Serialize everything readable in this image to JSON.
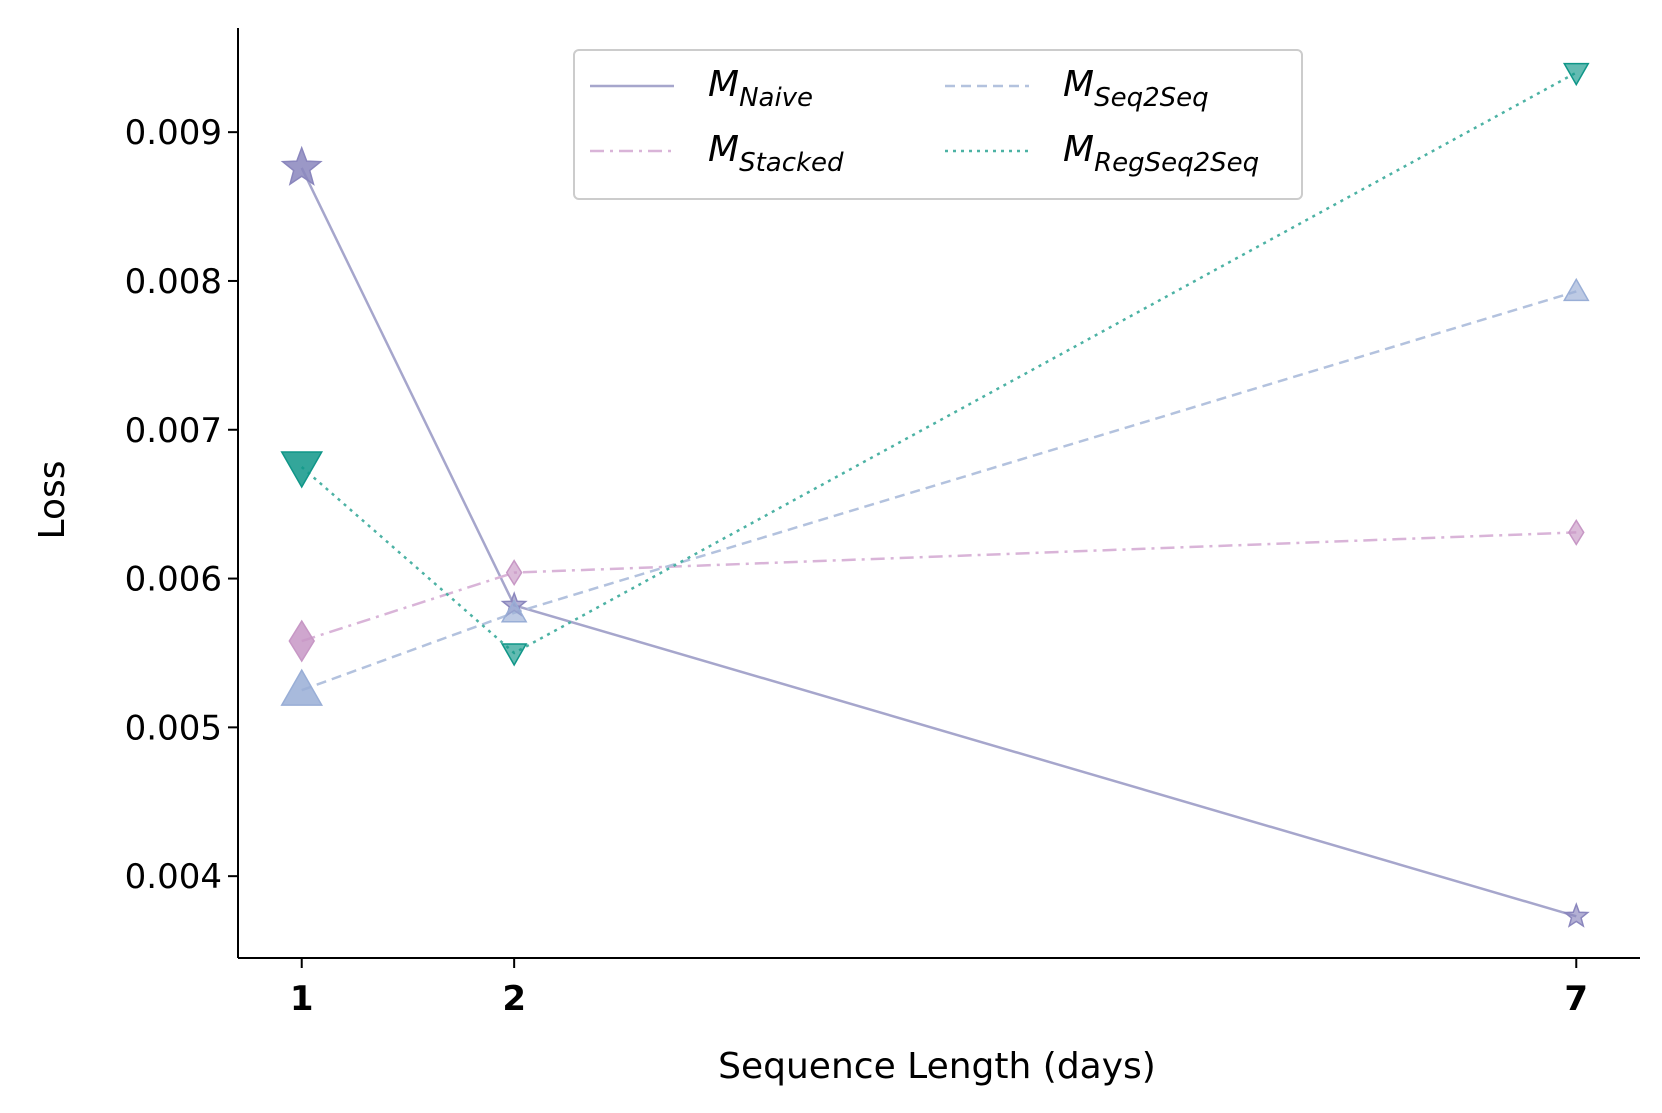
{
  "chart_data": {
    "type": "line",
    "xlabel": "Sequence Length (days)",
    "ylabel": "Loss",
    "x": [
      1,
      2,
      7
    ],
    "xlim": [
      0.7,
      7.3
    ],
    "ylim": [
      0.00345,
      0.0097
    ],
    "yticks": [
      0.004,
      0.005,
      0.006,
      0.007,
      0.008,
      0.009
    ],
    "ytick_labels": [
      "0.004",
      "0.005",
      "0.006",
      "0.007",
      "0.008",
      "0.009"
    ],
    "xtick_labels": [
      "1",
      "2",
      "7"
    ],
    "legend_position": "top-center",
    "legend_columns": 2,
    "grid": false,
    "series": [
      {
        "name_main": "M",
        "name_sub": "Naive",
        "values": [
          0.00876,
          0.00582,
          0.00373
        ],
        "color": "#a6a6cc",
        "marker_color": "#8a86bd",
        "dash": "solid",
        "marker": "star"
      },
      {
        "name_main": "M",
        "name_sub": "Stacked",
        "values": [
          0.00558,
          0.00604,
          0.00631
        ],
        "color": "#d9b4d8",
        "marker_color": "#c797c5",
        "dash": "dashdot",
        "marker": "diamond"
      },
      {
        "name_main": "M",
        "name_sub": "Seq2Seq",
        "values": [
          0.00525,
          0.00577,
          0.00793
        ],
        "color": "#b3c2de",
        "marker_color": "#99aed6",
        "dash": "dashed",
        "marker": "triangle-up"
      },
      {
        "name_main": "M",
        "name_sub": "RegSeq2Seq",
        "values": [
          0.00675,
          0.0055,
          0.0094
        ],
        "color": "#4cb2a4",
        "marker_color": "#0f9688",
        "dash": "dotted",
        "marker": "triangle-down"
      }
    ]
  }
}
